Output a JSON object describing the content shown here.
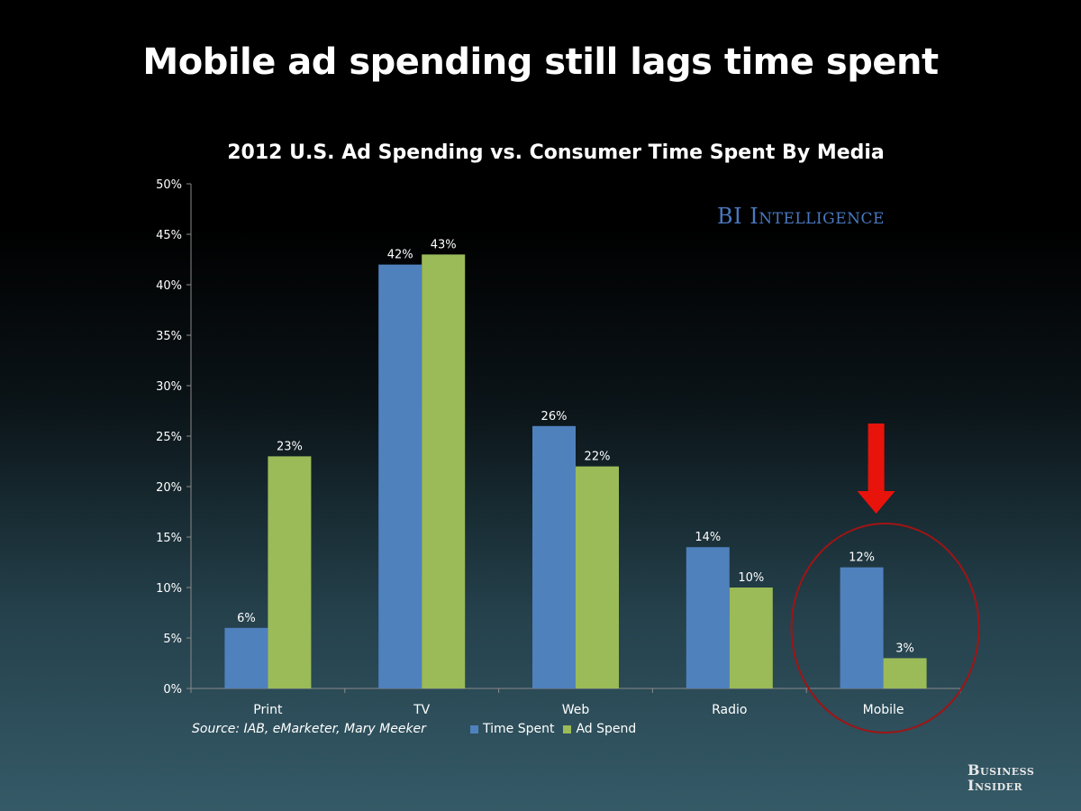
{
  "slide": {
    "title": "Mobile ad spending still lags time spent",
    "source": "Source:  IAB, eMarketer, Mary Meeker",
    "watermark": "BI Intelligence",
    "brand_line1": "Business",
    "brand_line2": "Insider"
  },
  "colors": {
    "time_spent": "#4f81bd",
    "ad_spend": "#9bbb59",
    "arrow": "#e8130b",
    "circle": "#a01414"
  },
  "chart_data": {
    "type": "bar",
    "title": "2012 U.S. Ad Spending vs. Consumer Time Spent By Media",
    "categories": [
      "Print",
      "TV",
      "Web",
      "Radio",
      "Mobile"
    ],
    "series": [
      {
        "name": "Time Spent",
        "values": [
          6,
          42,
          26,
          14,
          12
        ],
        "labels": [
          "6%",
          "42%",
          "26%",
          "14%",
          "12%"
        ]
      },
      {
        "name": "Ad Spend",
        "values": [
          23,
          43,
          22,
          10,
          3
        ],
        "labels": [
          "23%",
          "43%",
          "22%",
          "10%",
          "3%"
        ]
      }
    ],
    "ylim": [
      0,
      50
    ],
    "yticks": [
      0,
      5,
      10,
      15,
      20,
      25,
      30,
      35,
      40,
      45,
      50
    ],
    "ytick_labels": [
      "0%",
      "5%",
      "10%",
      "15%",
      "20%",
      "25%",
      "30%",
      "35%",
      "40%",
      "45%",
      "50%"
    ],
    "grid": false,
    "legend": "bottom",
    "highlight_category": "Mobile"
  }
}
